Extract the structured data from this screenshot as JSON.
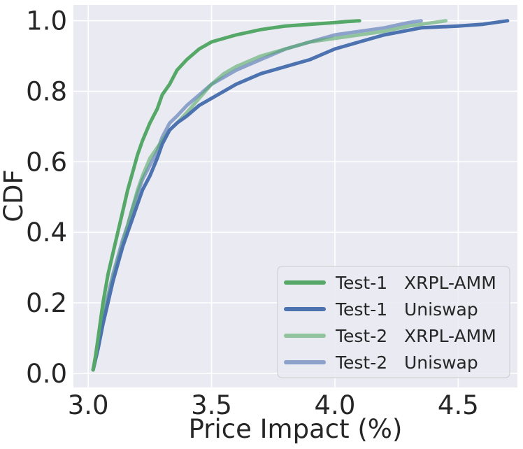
{
  "chart_data": {
    "type": "line",
    "xlabel": "Price Impact (%)",
    "ylabel": "CDF",
    "xlim": [
      2.94,
      4.74
    ],
    "ylim": [
      -0.04,
      1.045
    ],
    "xticks": [
      3.0,
      3.5,
      4.0,
      4.5
    ],
    "xtick_labels": [
      "3.0",
      "3.5",
      "4.0",
      "4.5"
    ],
    "yticks": [
      0.0,
      0.2,
      0.4,
      0.6,
      0.8,
      1.0
    ],
    "ytick_labels": [
      "0.0",
      "0.2",
      "0.4",
      "0.6",
      "0.8",
      "1.0"
    ],
    "grid": true,
    "background": "#EAEAF2",
    "legend_position": "lower-right",
    "series": [
      {
        "name": "Test-1   XRPL-AMM",
        "color": "#55A868",
        "opacity": 1.0,
        "x": [
          3.02,
          3.03,
          3.04,
          3.05,
          3.06,
          3.08,
          3.1,
          3.12,
          3.14,
          3.16,
          3.18,
          3.2,
          3.22,
          3.25,
          3.28,
          3.3,
          3.33,
          3.36,
          3.4,
          3.45,
          3.5,
          3.55,
          3.6,
          3.7,
          3.8,
          3.9,
          4.0,
          4.05,
          4.1
        ],
        "y": [
          0.01,
          0.05,
          0.1,
          0.15,
          0.2,
          0.28,
          0.34,
          0.4,
          0.46,
          0.52,
          0.57,
          0.62,
          0.66,
          0.71,
          0.75,
          0.79,
          0.82,
          0.86,
          0.89,
          0.92,
          0.94,
          0.95,
          0.96,
          0.975,
          0.985,
          0.99,
          0.995,
          0.998,
          1.0
        ]
      },
      {
        "name": "Test-1   Uniswap",
        "color": "#4C72B0",
        "opacity": 1.0,
        "x": [
          3.02,
          3.04,
          3.06,
          3.08,
          3.1,
          3.12,
          3.14,
          3.16,
          3.18,
          3.2,
          3.22,
          3.25,
          3.28,
          3.3,
          3.33,
          3.36,
          3.4,
          3.45,
          3.5,
          3.6,
          3.7,
          3.8,
          3.9,
          4.0,
          4.1,
          4.2,
          4.35,
          4.5,
          4.6,
          4.7
        ],
        "y": [
          0.01,
          0.07,
          0.14,
          0.2,
          0.26,
          0.31,
          0.36,
          0.4,
          0.44,
          0.48,
          0.52,
          0.56,
          0.61,
          0.65,
          0.69,
          0.71,
          0.73,
          0.76,
          0.78,
          0.82,
          0.85,
          0.87,
          0.89,
          0.92,
          0.94,
          0.96,
          0.98,
          0.985,
          0.99,
          1.0
        ]
      },
      {
        "name": "Test-2   XRPL-AMM",
        "color": "#55A868",
        "opacity": 0.6,
        "x": [
          3.02,
          3.04,
          3.06,
          3.08,
          3.1,
          3.12,
          3.14,
          3.16,
          3.18,
          3.2,
          3.22,
          3.25,
          3.28,
          3.3,
          3.33,
          3.36,
          3.4,
          3.45,
          3.5,
          3.55,
          3.6,
          3.7,
          3.8,
          3.9,
          4.0,
          4.1,
          4.2,
          4.3,
          4.4,
          4.45
        ],
        "y": [
          0.01,
          0.08,
          0.15,
          0.21,
          0.27,
          0.32,
          0.37,
          0.42,
          0.47,
          0.52,
          0.56,
          0.61,
          0.64,
          0.66,
          0.69,
          0.71,
          0.74,
          0.78,
          0.82,
          0.85,
          0.87,
          0.9,
          0.92,
          0.94,
          0.95,
          0.96,
          0.97,
          0.985,
          0.995,
          1.0
        ]
      },
      {
        "name": "Test-2   Uniswap",
        "color": "#4C72B0",
        "opacity": 0.6,
        "x": [
          3.02,
          3.04,
          3.06,
          3.08,
          3.1,
          3.12,
          3.14,
          3.16,
          3.18,
          3.2,
          3.22,
          3.25,
          3.28,
          3.3,
          3.33,
          3.36,
          3.4,
          3.45,
          3.5,
          3.55,
          3.6,
          3.7,
          3.8,
          3.9,
          4.0,
          4.1,
          4.2,
          4.3,
          4.35
        ],
        "y": [
          0.01,
          0.08,
          0.15,
          0.22,
          0.28,
          0.33,
          0.38,
          0.42,
          0.47,
          0.51,
          0.55,
          0.59,
          0.63,
          0.67,
          0.71,
          0.73,
          0.76,
          0.79,
          0.82,
          0.84,
          0.86,
          0.89,
          0.92,
          0.94,
          0.96,
          0.97,
          0.98,
          0.995,
          1.0
        ]
      }
    ]
  }
}
